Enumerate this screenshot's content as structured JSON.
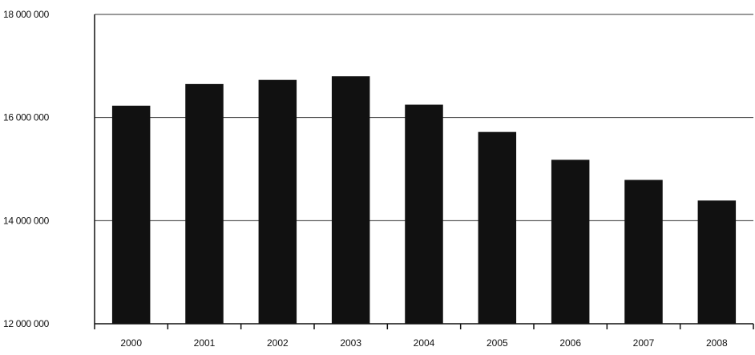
{
  "chart_data": {
    "type": "bar",
    "categories": [
      "2000",
      "2001",
      "2002",
      "2003",
      "2004",
      "2005",
      "2006",
      "2007",
      "2008"
    ],
    "values": [
      16230000,
      16650000,
      16730000,
      16800000,
      16250000,
      15720000,
      15180000,
      14790000,
      14390000
    ],
    "y_ticks": [
      "12 000 000",
      "14 000 000",
      "16 000 000",
      "18 000 000"
    ],
    "y_tick_values": [
      12000000,
      14000000,
      16000000,
      18000000
    ],
    "ylim": [
      12000000,
      18000000
    ],
    "grid": true,
    "legend": "none",
    "title": "",
    "xlabel": "",
    "ylabel": "",
    "bar_color": "#111111",
    "grid_color": "#333333"
  }
}
